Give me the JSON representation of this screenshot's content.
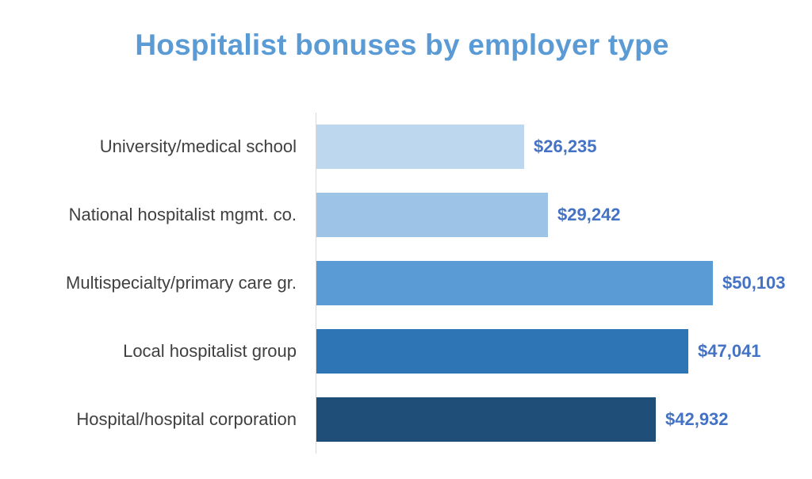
{
  "title": "Hospitalist bonuses by employer type",
  "bars": [
    {
      "label": "University/medical school",
      "value": 26235,
      "display": "$26,235",
      "color": "#bdd7ee"
    },
    {
      "label": "National hospitalist mgmt. co.",
      "value": 29242,
      "display": "$29,242",
      "color": "#9dc3e6"
    },
    {
      "label": "Multispecialty/primary care gr.",
      "value": 50103,
      "display": "$50,103",
      "color": "#5b9bd5"
    },
    {
      "label": "Local hospitalist group",
      "value": 47041,
      "display": "$47,041",
      "color": "#2e75b6"
    },
    {
      "label": "Hospital/hospital corporation",
      "value": 42932,
      "display": "$42,932",
      "color": "#1f4e79"
    }
  ],
  "colors": {
    "title": "#5b9bd5",
    "value_label": "#4472c4",
    "category_label": "#404040",
    "axis": "#d9d9d9"
  },
  "chart_data": {
    "type": "bar",
    "orientation": "horizontal",
    "title": "Hospitalist bonuses by employer type",
    "categories": [
      "University/medical school",
      "National hospitalist mgmt. co.",
      "Multispecialty/primary care gr.",
      "Local hospitalist group",
      "Hospital/hospital corporation"
    ],
    "values": [
      26235,
      29242,
      50103,
      47041,
      42932
    ],
    "data_labels": [
      "$26,235",
      "$29,242",
      "$50,103",
      "$47,041",
      "$42,932"
    ],
    "xlabel": "",
    "ylabel": "",
    "grid": false,
    "legend": "none"
  }
}
